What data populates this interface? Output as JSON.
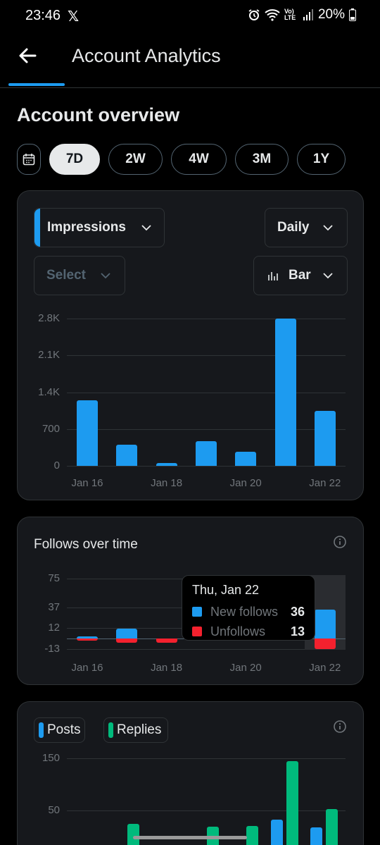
{
  "status_bar": {
    "time": "23:46",
    "x_glyph": "𝕏",
    "battery": "20%",
    "network_label": "Vo) LTE"
  },
  "header": {
    "title": "Account Analytics"
  },
  "overview": {
    "title": "Account overview",
    "ranges": [
      "7D",
      "2W",
      "4W",
      "3M",
      "1Y"
    ],
    "selected_range": "7D"
  },
  "impressions_card": {
    "metric_dropdown": "Impressions",
    "interval_dropdown": "Daily",
    "compare_dropdown": "Select",
    "chart_type_dropdown": "Bar",
    "accent_color": "#1d9bf0"
  },
  "follows_card": {
    "title": "Follows over time",
    "tooltip": {
      "date": "Thu, Jan 22",
      "new_follows_label": "New follows",
      "new_follows_value": "36",
      "unfollows_label": "Unfollows",
      "unfollows_value": "13"
    }
  },
  "posts_card": {
    "legend": [
      {
        "label": "Posts",
        "color": "#1d9bf0"
      },
      {
        "label": "Replies",
        "color": "#00ba7c"
      }
    ]
  },
  "chart_data": [
    {
      "type": "bar",
      "categories": [
        "Jan 16",
        "Jan 17",
        "Jan 18",
        "Jan 19",
        "Jan 20",
        "Jan 21",
        "Jan 22"
      ],
      "x_tick_labels": [
        "Jan 16",
        "Jan 18",
        "Jan 20",
        "Jan 22"
      ],
      "y_ticks": [
        "2.8K",
        "2.1K",
        "1.4K",
        "700",
        "0"
      ],
      "ylim": [
        0,
        2800
      ],
      "series": [
        {
          "name": "Impressions",
          "color": "#1d9bf0",
          "values": [
            1250,
            400,
            50,
            470,
            270,
            2800,
            1040
          ]
        }
      ]
    },
    {
      "type": "bar",
      "categories": [
        "Jan 16",
        "Jan 17",
        "Jan 18",
        "Jan 19",
        "Jan 20",
        "Jan 21",
        "Jan 22"
      ],
      "x_tick_labels": [
        "Jan 16",
        "Jan 18",
        "Jan 20",
        "Jan 22"
      ],
      "y_ticks": [
        "75",
        "37",
        "12",
        "-13"
      ],
      "ylim": [
        -13,
        75
      ],
      "series": [
        {
          "name": "New follows",
          "color": "#1d9bf0",
          "values": [
            3,
            12,
            0,
            0,
            0,
            75,
            36
          ]
        },
        {
          "name": "Unfollows",
          "color": "#f4212e",
          "values": [
            -3,
            -5,
            -5,
            0,
            0,
            0,
            -13
          ]
        }
      ]
    },
    {
      "type": "bar",
      "categories": [
        "Jan 16",
        "Jan 17",
        "Jan 18",
        "Jan 19",
        "Jan 20",
        "Jan 21",
        "Jan 22"
      ],
      "y_ticks": [
        "150",
        "50"
      ],
      "ylim": [
        0,
        150
      ],
      "series": [
        {
          "name": "Posts",
          "color": "#1d9bf0",
          "values": [
            0,
            0,
            0,
            0,
            0,
            32,
            18
          ]
        },
        {
          "name": "Replies",
          "color": "#00ba7c",
          "values": [
            0,
            24,
            0,
            19,
            20,
            145,
            53
          ]
        }
      ]
    }
  ]
}
